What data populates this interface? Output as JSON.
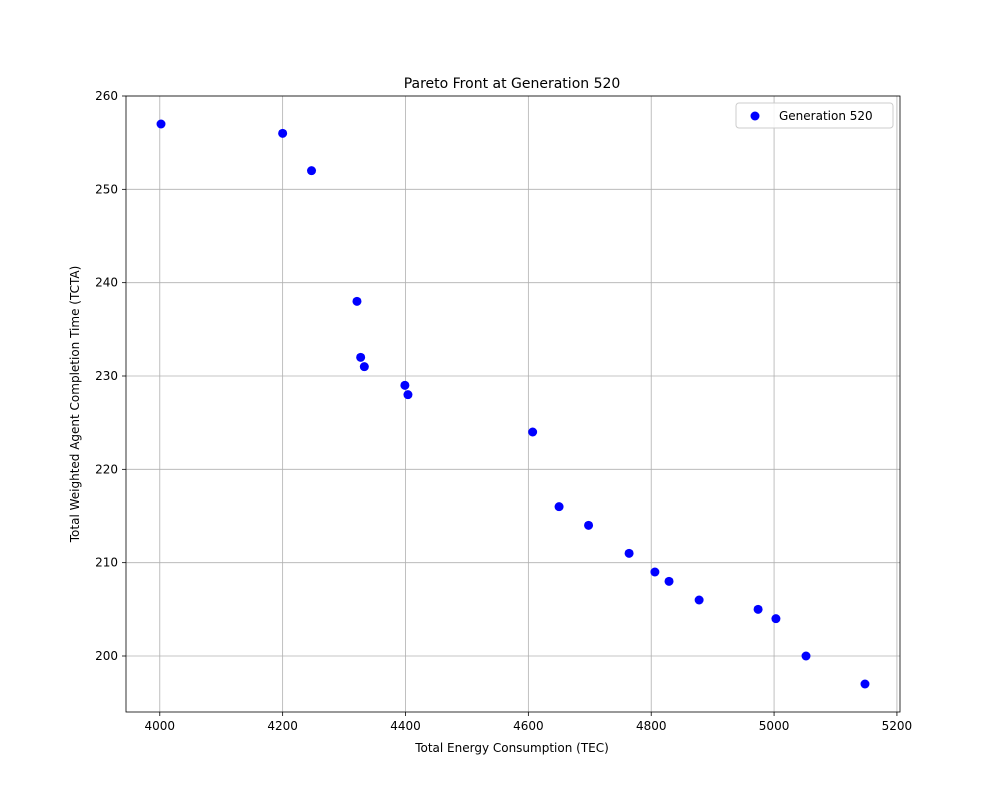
{
  "chart_data": {
    "type": "scatter",
    "title": "Pareto Front at Generation 520",
    "xlabel": "Total Energy Consumption (TEC)",
    "ylabel": "Total Weighted Agent Completion Time (TCTA)",
    "xlim": [
      3945,
      5205
    ],
    "ylim": [
      194,
      260
    ],
    "xticks": [
      4000,
      4200,
      4400,
      4600,
      4800,
      5000,
      5200
    ],
    "yticks": [
      200,
      210,
      220,
      230,
      240,
      250,
      260
    ],
    "xtick_labels": [
      "4000",
      "4200",
      "4400",
      "4600",
      "4800",
      "5000",
      "5200"
    ],
    "ytick_labels": [
      "200",
      "210",
      "220",
      "230",
      "240",
      "250",
      "260"
    ],
    "grid": true,
    "legend_position": "upper right",
    "series": [
      {
        "name": "Generation 520",
        "color": "#0000ff",
        "marker": "circle",
        "points": [
          {
            "x": 4002,
            "y": 257
          },
          {
            "x": 4200,
            "y": 256
          },
          {
            "x": 4247,
            "y": 252
          },
          {
            "x": 4321,
            "y": 238
          },
          {
            "x": 4327,
            "y": 232
          },
          {
            "x": 4333,
            "y": 231
          },
          {
            "x": 4399,
            "y": 229
          },
          {
            "x": 4404,
            "y": 228
          },
          {
            "x": 4607,
            "y": 224
          },
          {
            "x": 4650,
            "y": 216
          },
          {
            "x": 4698,
            "y": 214
          },
          {
            "x": 4764,
            "y": 211
          },
          {
            "x": 4806,
            "y": 209
          },
          {
            "x": 4829,
            "y": 208
          },
          {
            "x": 4878,
            "y": 206
          },
          {
            "x": 4974,
            "y": 205
          },
          {
            "x": 5003,
            "y": 204
          },
          {
            "x": 5052,
            "y": 200
          },
          {
            "x": 5148,
            "y": 197
          }
        ]
      }
    ]
  }
}
